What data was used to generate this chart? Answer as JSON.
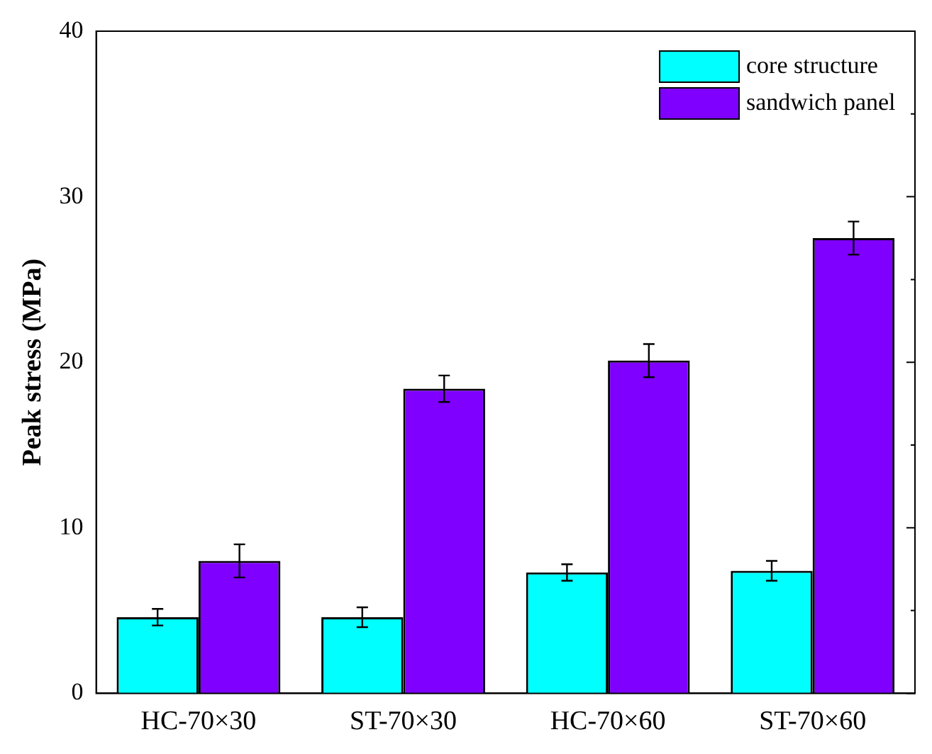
{
  "chart_data": {
    "type": "bar",
    "ylabel": "Peak stress (MPa)",
    "categories": [
      "HC-70×30",
      "ST-70×30",
      "HC-70×60",
      "ST-70×60"
    ],
    "series": [
      {
        "name": "core structure",
        "color": "#00ffff",
        "values": [
          4.6,
          4.6,
          7.3,
          7.4
        ],
        "errors": [
          0.5,
          0.6,
          0.5,
          0.6
        ]
      },
      {
        "name": "sandwich panel",
        "color": "#7f00ff",
        "values": [
          8.0,
          18.4,
          20.1,
          27.5
        ],
        "errors": [
          1.0,
          0.8,
          1.0,
          1.0
        ]
      }
    ],
    "ylim": [
      0,
      40
    ],
    "yticks": [
      0,
      {
        "value": 5,
        "label": null
      },
      10,
      {
        "value": 15,
        "label": null
      },
      20,
      {
        "value": 25,
        "label": null
      },
      30,
      {
        "value": 35,
        "label": null
      },
      40
    ],
    "grid": false,
    "legend": "top right"
  }
}
